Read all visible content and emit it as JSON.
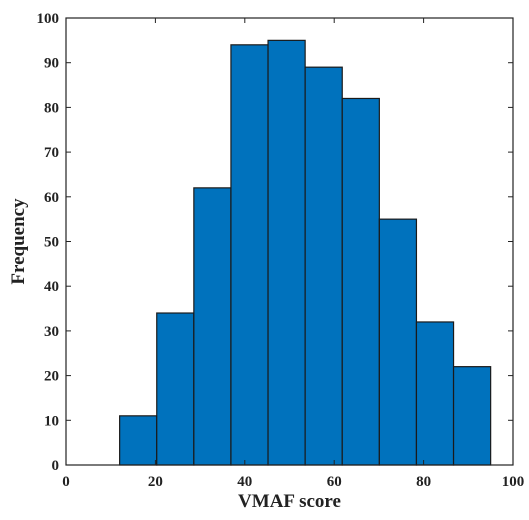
{
  "chart_data": {
    "type": "bar",
    "variant": "histogram",
    "bin_edges": [
      12,
      20.3,
      28.6,
      36.9,
      45.2,
      53.5,
      61.8,
      70.1,
      78.4,
      86.7,
      95
    ],
    "values": [
      11,
      34,
      62,
      94,
      95,
      89,
      82,
      55,
      32,
      22
    ],
    "xlabel": "VMAF score",
    "ylabel": "Frequency",
    "xlim": [
      0,
      100
    ],
    "ylim": [
      0,
      100
    ],
    "x_ticks": [
      0,
      20,
      40,
      60,
      80,
      100
    ],
    "y_ticks": [
      0,
      10,
      20,
      30,
      40,
      50,
      60,
      70,
      80,
      90,
      100
    ],
    "grid": false,
    "colors": {
      "bar_fill": "#0072BD",
      "bar_edge": "#1a1a1a",
      "axis": "#222222"
    }
  }
}
